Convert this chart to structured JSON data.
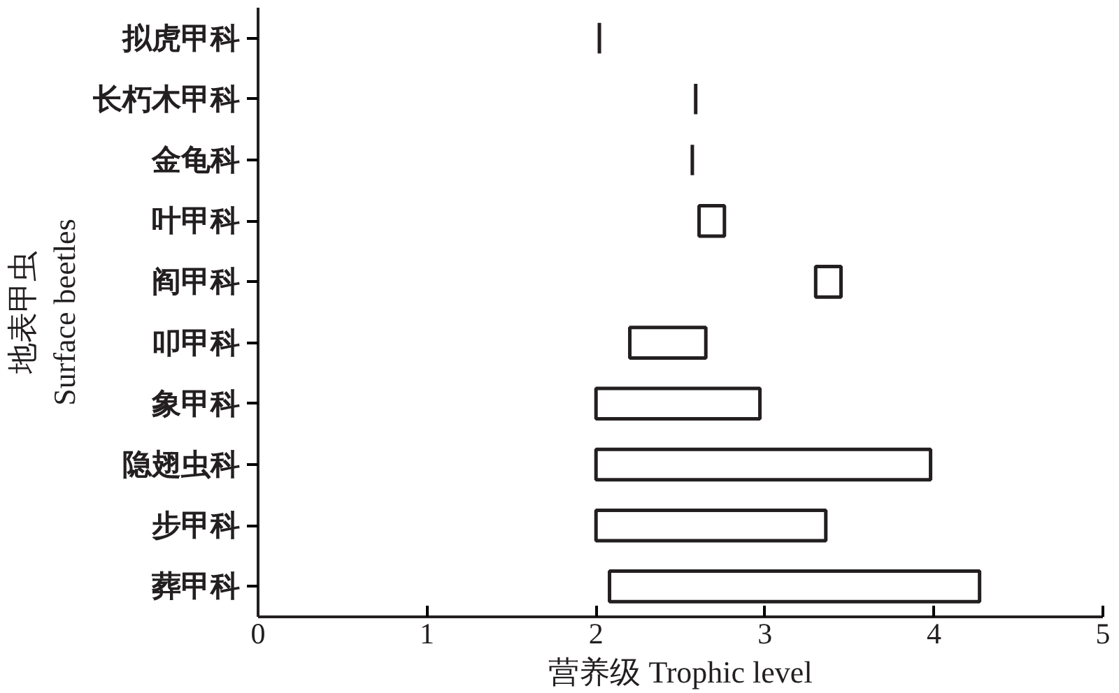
{
  "chart_data": {
    "type": "bar",
    "orientation": "horizontal",
    "xlabel": "营养级 Trophic level",
    "ylabel": "地表甲虫\nSurface beetles",
    "categories": [
      "拟虎甲科",
      "长朽木甲科",
      "金龟科",
      "叶甲科",
      "阎甲科",
      "叩甲科",
      "象甲科",
      "隐翅虫科",
      "步甲科",
      "葬甲科"
    ],
    "base": [
      2.02,
      2.59,
      2.57,
      2.61,
      3.3,
      2.2,
      2.0,
      2.0,
      2.0,
      2.08
    ],
    "values": [
      0,
      0,
      0,
      0.15,
      0.15,
      0.45,
      0.97,
      1.98,
      1.36,
      2.19
    ],
    "color": "#231f20",
    "xlim": [
      0,
      5
    ],
    "xticks": [
      0,
      1,
      2,
      3,
      4,
      5
    ],
    "grid": false
  }
}
